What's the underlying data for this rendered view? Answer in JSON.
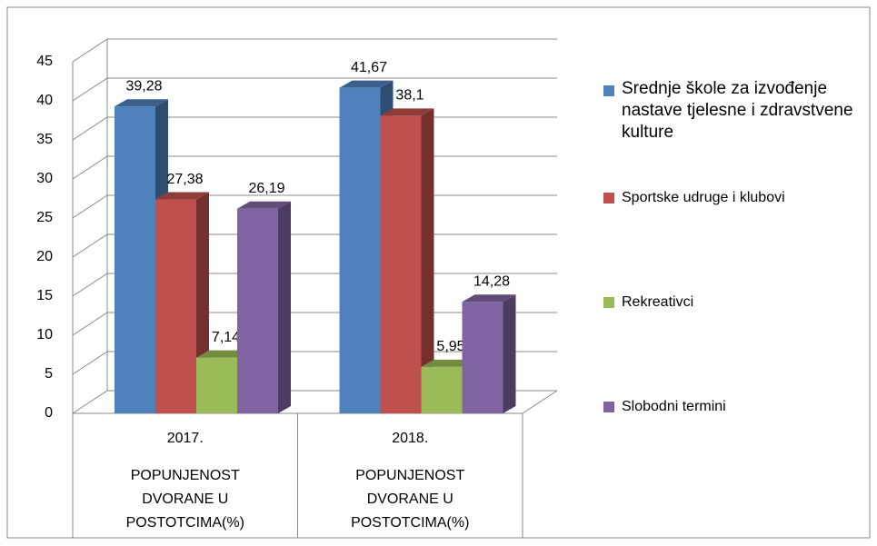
{
  "chart_data": {
    "type": "bar3d",
    "categories": [
      "2017.",
      "2018."
    ],
    "category_groups": [
      "POPUNJENOST DVORANE U POSTOTCIMA(%)",
      "POPUNJENOST DVORANE U POSTOTCIMA(%)"
    ],
    "series": [
      {
        "name": "Srednje škole za izvođenje nastave tjelesne i zdravstvene kulture",
        "color": "#4f81bd",
        "values": [
          39.28,
          41.67
        ],
        "value_labels": [
          "39,28",
          "41,67"
        ]
      },
      {
        "name": "Sportske udruge i klubovi",
        "color": "#c0504d",
        "values": [
          27.38,
          38.1
        ],
        "value_labels": [
          "27,38",
          "38,1"
        ]
      },
      {
        "name": "Rekreativci",
        "color": "#9bbb59",
        "values": [
          7.14,
          5.95
        ],
        "value_labels": [
          "7,14",
          "5,95"
        ]
      },
      {
        "name": "Slobodni termini",
        "color": "#8064a2",
        "values": [
          26.19,
          14.28
        ],
        "value_labels": [
          "26,19",
          "14,28"
        ]
      }
    ],
    "ylim": [
      0,
      45
    ],
    "yticks": [
      0,
      5,
      10,
      15,
      20,
      25,
      30,
      35,
      40,
      45
    ],
    "grid": true,
    "legend": "right"
  }
}
